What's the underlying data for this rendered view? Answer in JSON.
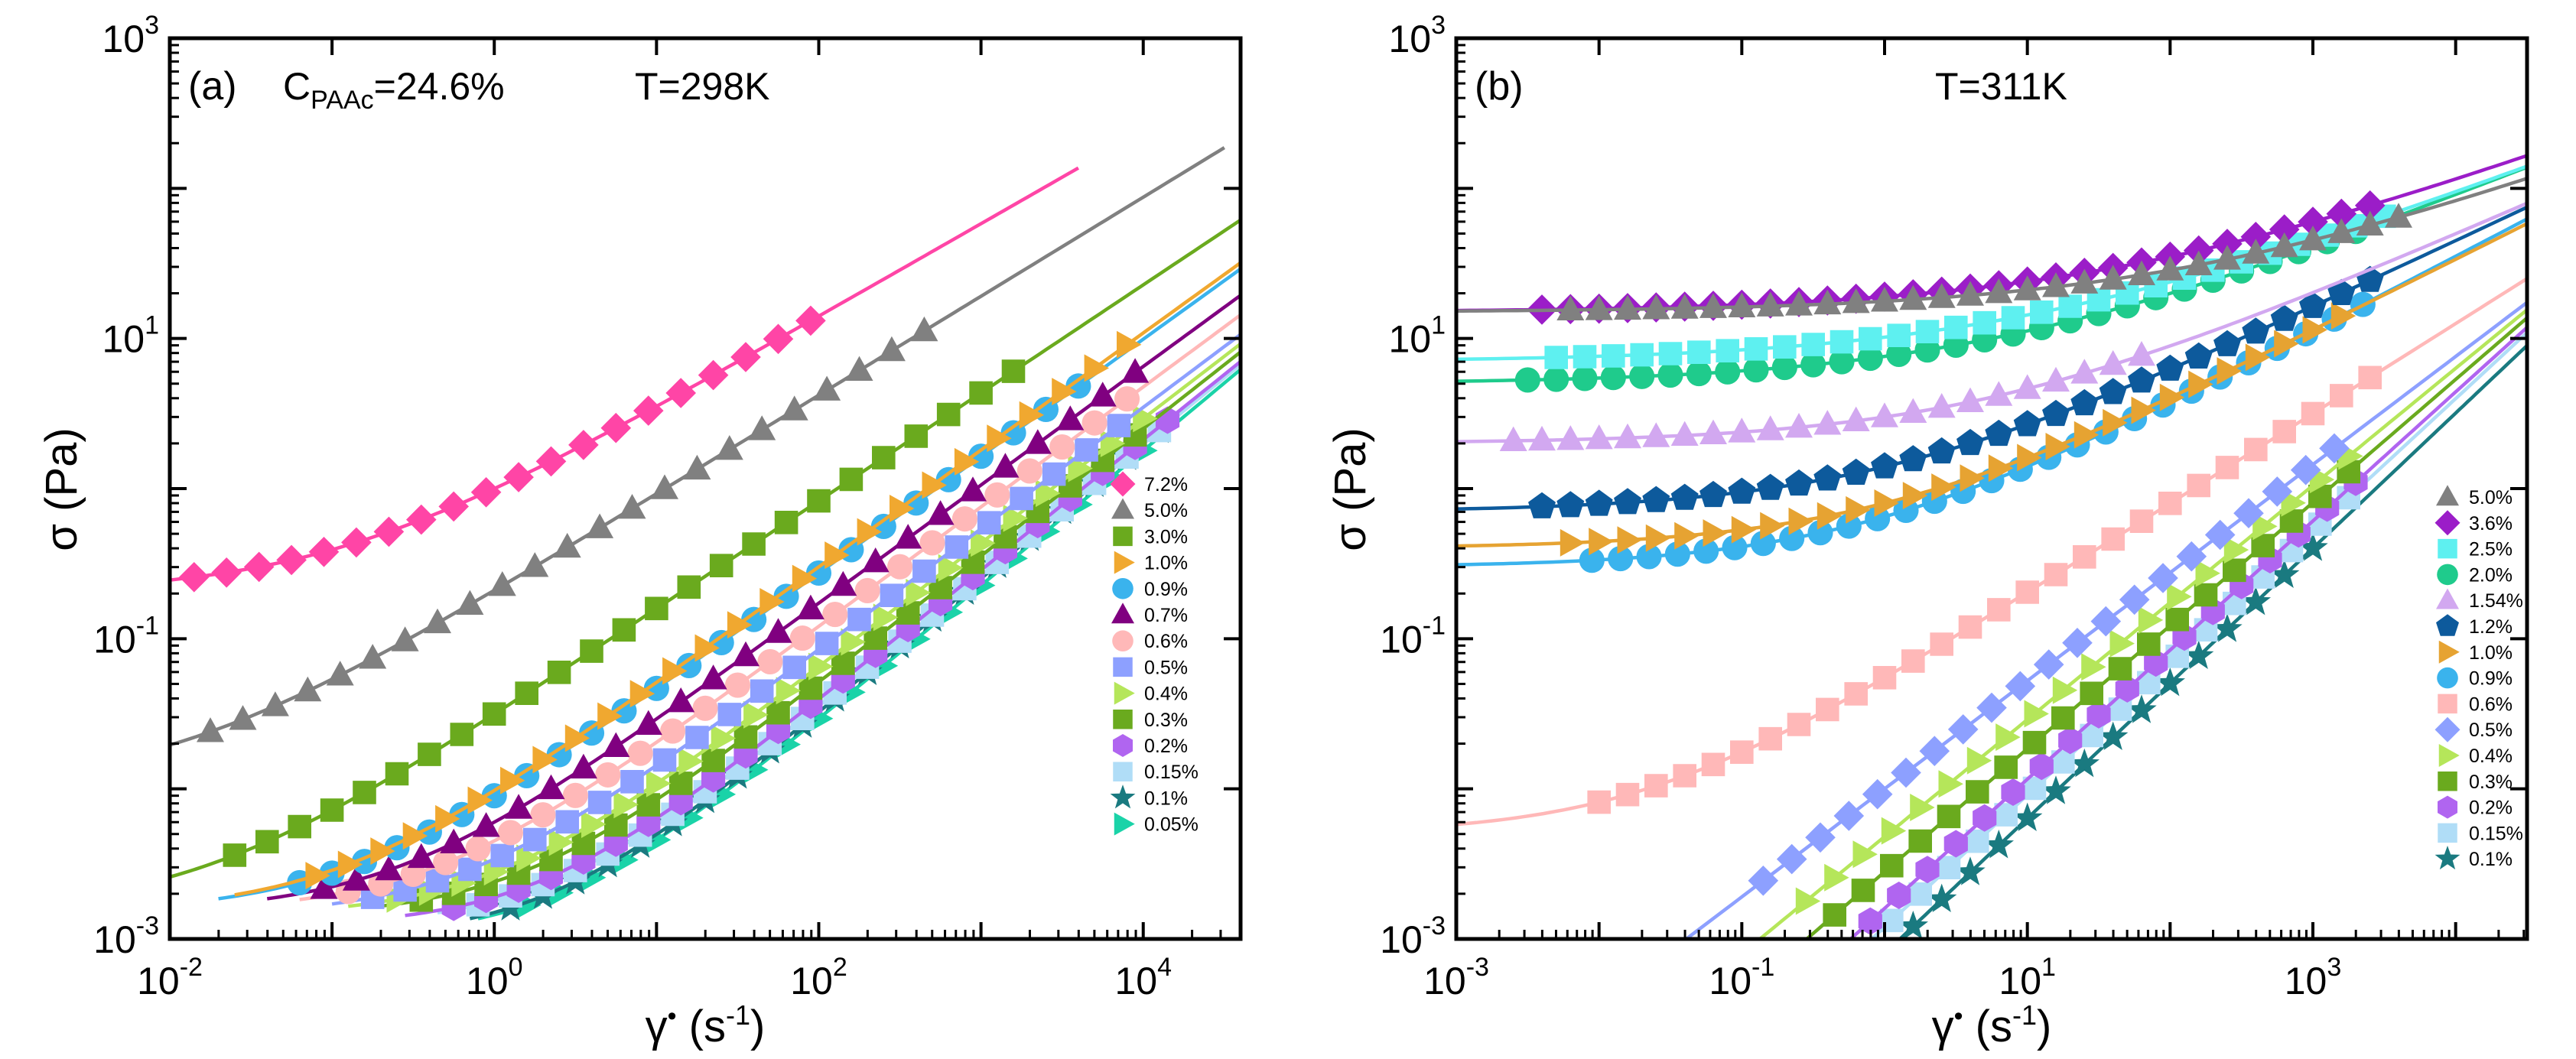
{
  "chart_data": [
    {
      "type": "scatter",
      "panel": "a",
      "panel_label": "(a)",
      "annotation_conc_main": "C",
      "annotation_conc_sub": "PAAc",
      "annotation_conc_value": "=24.6%",
      "annotation_temp": "T=298K",
      "xlabel_symbol": "γ",
      "xlabel_dot": "•",
      "xlabel_unit_open": " (s",
      "xlabel_unit_exp": "-1",
      "xlabel_unit_close": ")",
      "ylabel": "σ (Pa)",
      "xlog_range": [
        -2,
        4.6
      ],
      "ylog_range": [
        -3,
        3
      ],
      "x_ticks": [
        {
          "base": "10",
          "exp": "-2",
          "pos": -2
        },
        {
          "base": "10",
          "exp": "0",
          "pos": 0
        },
        {
          "base": "10",
          "exp": "2",
          "pos": 2
        },
        {
          "base": "10",
          "exp": "4",
          "pos": 4
        }
      ],
      "y_ticks": [
        {
          "base": "10",
          "exp": "-3",
          "pos": -3
        },
        {
          "base": "10",
          "exp": "-1",
          "pos": -1
        },
        {
          "base": "10",
          "exp": "1",
          "pos": 1
        },
        {
          "base": "10",
          "exp": "3",
          "pos": 3
        }
      ],
      "legend_position": "bottom-right",
      "series": [
        {
          "name": "7.2%",
          "marker": "diamond",
          "color": "#ff45a6",
          "fit": {
            "a": 0.2,
            "b": 0.8,
            "n": 0.62
          },
          "x_start": -1.85,
          "x_end": 2.1,
          "x_curve": [
            -2,
            3.6
          ]
        },
        {
          "name": "5.0%",
          "marker": "triangle-up",
          "color": "#808080",
          "fit": {
            "a": 0.01,
            "b": 0.2,
            "n": 0.66
          },
          "x_start": -1.75,
          "x_end": 2.8,
          "x_curve": [
            -2,
            4.5
          ]
        },
        {
          "name": "3.0%",
          "marker": "square",
          "color": "#6aaa1e",
          "fit": {
            "a": 0.0015,
            "b": 0.03,
            "n": 0.72
          },
          "x_start": -1.6,
          "x_end": 3.3,
          "x_curve": [
            -2,
            4.6
          ]
        },
        {
          "name": "1.0%",
          "marker": "triangle-right",
          "color": "#f0a830",
          "fit": {
            "a": 0.0015,
            "b": 0.00825,
            "n": 0.78
          },
          "x_start": -1.1,
          "x_end": 3.9,
          "x_curve": [
            -1.6,
            4.6
          ]
        },
        {
          "name": "0.9%",
          "marker": "circle",
          "color": "#3ab3ed",
          "fit": {
            "a": 0.0015,
            "b": 0.0075,
            "n": 0.78
          },
          "x_start": -1.2,
          "x_end": 3.6,
          "x_curve": [
            -1.7,
            4.6
          ]
        },
        {
          "name": "0.7%",
          "marker": "triangle-up",
          "color": "#800080",
          "fit": {
            "a": 0.0015,
            "b": 0.0045,
            "n": 0.79
          },
          "x_start": -1.05,
          "x_end": 3.95,
          "x_curve": [
            -1.4,
            4.6
          ]
        },
        {
          "name": "0.6%",
          "marker": "circle",
          "color": "#ffb8b8",
          "fit": {
            "a": 0.0015,
            "b": 0.003,
            "n": 0.8
          },
          "x_start": -0.9,
          "x_end": 3.9,
          "x_curve": [
            -1.2,
            4.6
          ]
        },
        {
          "name": "0.5%",
          "marker": "square",
          "color": "#8da0ff",
          "fit": {
            "a": 0.0014,
            "b": 0.002,
            "n": 0.81
          },
          "x_start": -0.75,
          "x_end": 3.9,
          "x_curve": [
            -1.0,
            4.6
          ]
        },
        {
          "name": "0.4%",
          "marker": "triangle-right",
          "color": "#b5e65a",
          "fit": {
            "a": 0.0014,
            "b": 0.0014,
            "n": 0.83
          },
          "x_start": -0.6,
          "x_end": 4.05,
          "x_curve": [
            -0.9,
            4.6
          ]
        },
        {
          "name": "0.3%",
          "marker": "square",
          "color": "#6aaa1e",
          "fit": {
            "a": 0.0014,
            "b": 0.001,
            "n": 0.85
          },
          "x_start": -0.45,
          "x_end": 4.1,
          "x_curve": [
            -0.7,
            4.6
          ]
        },
        {
          "name": "0.2%",
          "marker": "hexagon",
          "color": "#b065f0",
          "fit": {
            "a": 0.0012,
            "b": 0.0007,
            "n": 0.87
          },
          "x_start": -0.25,
          "x_end": 4.15,
          "x_curve": [
            -0.55,
            4.6
          ]
        },
        {
          "name": "0.15%",
          "marker": "square",
          "color": "#b0ddf7",
          "fit": {
            "a": 0.0012,
            "b": 0.0006,
            "n": 0.88
          },
          "x_start": -0.1,
          "x_end": 4.15,
          "x_curve": [
            -0.35,
            4.6
          ]
        },
        {
          "name": "0.1%",
          "marker": "star",
          "color": "#1a7a80",
          "fit": {
            "a": 0.001,
            "b": 0.0005,
            "n": 0.9
          },
          "x_start": 0.1,
          "x_end": 4.1,
          "x_curve": [
            -0.15,
            4.6
          ]
        },
        {
          "name": "0.05%",
          "marker": "triangle-right",
          "color": "#1ad3a8",
          "fit": {
            "a": 0.001,
            "b": 0.00045,
            "n": 0.9
          },
          "x_start": 0.2,
          "x_end": 4.1,
          "x_curve": [
            -0.1,
            4.6
          ]
        }
      ]
    },
    {
      "type": "scatter",
      "panel": "b",
      "panel_label": "(b)",
      "annotation_temp": "T=311K",
      "xlabel_symbol": "γ",
      "xlabel_dot": "•",
      "xlabel_unit_open": " (s",
      "xlabel_unit_exp": "-1",
      "xlabel_unit_close": ")",
      "ylabel": "σ (Pa)",
      "xlog_range": [
        -3,
        4.5
      ],
      "ylog_range": [
        -3,
        3
      ],
      "x_ticks": [
        {
          "base": "10",
          "exp": "-3",
          "pos": -3
        },
        {
          "base": "10",
          "exp": "-1",
          "pos": -1
        },
        {
          "base": "10",
          "exp": "1",
          "pos": 1
        },
        {
          "base": "10",
          "exp": "3",
          "pos": 3
        }
      ],
      "y_ticks": [
        {
          "base": "10",
          "exp": "-3",
          "pos": -3
        },
        {
          "base": "10",
          "exp": "-1",
          "pos": -1
        },
        {
          "base": "10",
          "exp": "1",
          "pos": 1
        },
        {
          "base": "10",
          "exp": "3",
          "pos": 3
        }
      ],
      "legend_position": "bottom-right",
      "series": [
        {
          "name": "5.0%",
          "marker": "triangle-up",
          "color": "#808080",
          "fit": {
            "a": 15,
            "b": 2.7,
            "n": 0.35
          },
          "x_start": -2.2,
          "x_end": 3.6,
          "x_curve": [
            -3,
            4.5
          ]
        },
        {
          "name": "3.6%",
          "marker": "diamond",
          "color": "#9b1dc8",
          "fit": {
            "a": 15,
            "b": 4.0,
            "n": 0.35
          },
          "x_start": -2.4,
          "x_end": 3.4,
          "x_curve": [
            -3,
            4.5
          ]
        },
        {
          "name": "2.5%",
          "marker": "square",
          "color": "#5ef0f0",
          "fit": {
            "a": 7,
            "b": 3.2,
            "n": 0.36
          },
          "x_start": -2.3,
          "x_end": 3.6,
          "x_curve": [
            -3,
            4.5
          ]
        },
        {
          "name": "2.0%",
          "marker": "circle",
          "color": "#1fcb8c",
          "fit": {
            "a": 5,
            "b": 2.6,
            "n": 0.38
          },
          "x_start": -2.5,
          "x_end": 3.4,
          "x_curve": [
            -3,
            4.5
          ]
        },
        {
          "name": "1.54%",
          "marker": "triangle-up",
          "color": "#d2a8f0",
          "fit": {
            "a": 2.0,
            "b": 1.0,
            "n": 0.42
          },
          "x_start": -2.6,
          "x_end": 1.8,
          "x_curve": [
            -3,
            4.5
          ]
        },
        {
          "name": "1.2%",
          "marker": "pentagon",
          "color": "#0d5a9c",
          "fit": {
            "a": 0.7,
            "b": 0.7,
            "n": 0.45
          },
          "x_start": -2.4,
          "x_end": 3.4,
          "x_curve": [
            -3,
            4.5
          ]
        },
        {
          "name": "1.0%",
          "marker": "triangle-right",
          "color": "#e6a332",
          "fit": {
            "a": 0.4,
            "b": 0.4,
            "n": 0.48
          },
          "x_start": -2.2,
          "x_end": 3.3,
          "x_curve": [
            -3,
            4.5
          ]
        },
        {
          "name": "0.9%",
          "marker": "circle",
          "color": "#3ab3ed",
          "fit": {
            "a": 0.3,
            "b": 0.35,
            "n": 0.5
          },
          "x_start": -2.05,
          "x_end": 3.4,
          "x_curve": [
            -3,
            4.5
          ]
        },
        {
          "name": "0.6%",
          "marker": "square",
          "color": "#ffb8b8",
          "fit": {
            "a": 0.005,
            "b": 0.05,
            "n": 0.6
          },
          "x_start": -2.0,
          "x_end": 3.4,
          "x_curve": [
            -3,
            4.5
          ]
        },
        {
          "name": "0.5%",
          "marker": "diamond",
          "color": "#8da0ff",
          "fit": {
            "a": 0,
            "b": 0.01,
            "n": 0.72
          },
          "x_start": -0.85,
          "x_end": 3.2,
          "x_curve": [
            -1.6,
            4.5
          ]
        },
        {
          "name": "0.4%",
          "marker": "triangle-right",
          "color": "#b5e65a",
          "fit": {
            "a": 0,
            "b": 0.0048,
            "n": 0.78
          },
          "x_start": -0.55,
          "x_end": 3.35,
          "x_curve": [
            -1.2,
            4.5
          ]
        },
        {
          "name": "0.3%",
          "marker": "square",
          "color": "#6aaa1e",
          "fit": {
            "a": 0,
            "b": 0.0028,
            "n": 0.82
          },
          "x_start": -0.35,
          "x_end": 3.35,
          "x_curve": [
            -0.9,
            4.5
          ]
        },
        {
          "name": "0.2%",
          "marker": "hexagon",
          "color": "#b065f0",
          "fit": {
            "a": 0,
            "b": 0.0016,
            "n": 0.86
          },
          "x_start": -0.1,
          "x_end": 3.35,
          "x_curve": [
            -0.6,
            4.5
          ]
        },
        {
          "name": "0.15%",
          "marker": "square",
          "color": "#b0ddf7",
          "fit": {
            "a": 0,
            "b": 0.0012,
            "n": 0.88
          },
          "x_start": 0.05,
          "x_end": 3.35,
          "x_curve": [
            -0.45,
            4.5
          ]
        },
        {
          "name": "0.1%",
          "marker": "star",
          "color": "#1a7a80",
          "fit": {
            "a": 0,
            "b": 0.0008,
            "n": 0.9
          },
          "x_start": 0.2,
          "x_end": 3.0,
          "x_curve": [
            -0.25,
            4.5
          ]
        }
      ]
    }
  ]
}
